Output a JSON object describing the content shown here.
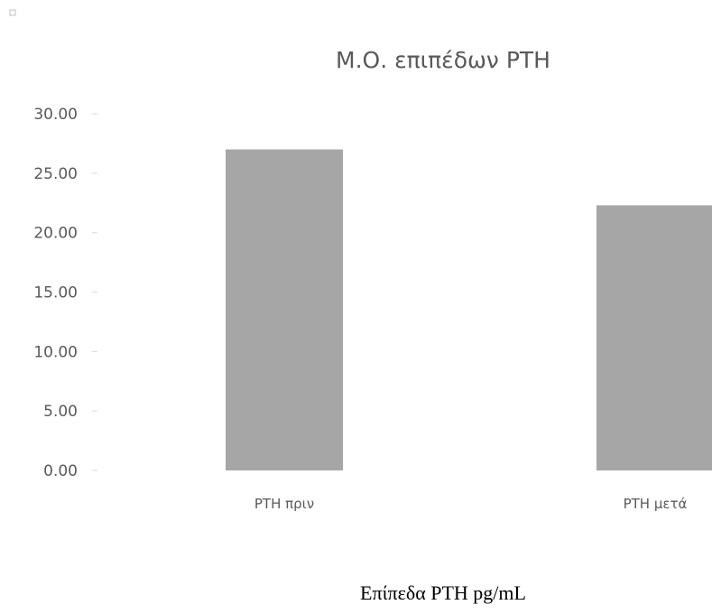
{
  "chart_data": {
    "type": "bar",
    "title": "Μ.Ο. επιπέδων PTH",
    "categories": [
      "PTH πριν",
      "PTH μετά"
    ],
    "values": [
      27.0,
      22.3
    ],
    "ylim": [
      0,
      30
    ],
    "y_ticks": [
      "0.00",
      "5.00",
      "10.00",
      "15.00",
      "20.00",
      "25.00",
      "30.00"
    ],
    "xlabel": "",
    "ylabel": "",
    "grid": false,
    "legend": "none",
    "bar_color": "#a6a6a6",
    "text_color": "#595959"
  },
  "caption": "Επίπεδα PTH pg/mL"
}
